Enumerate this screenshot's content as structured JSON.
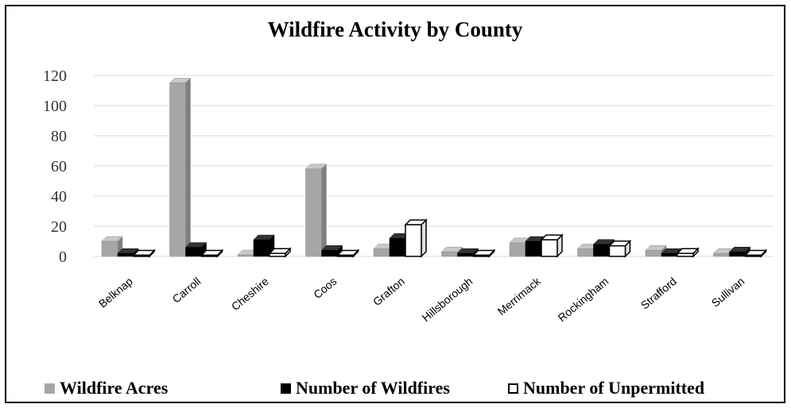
{
  "chart_data": {
    "type": "bar",
    "title": "Wildfire Activity by County",
    "categories": [
      "Belknap",
      "Carroll",
      "Cheshire",
      "Coos",
      "Grafton",
      "Hillsborough",
      "Merrimack",
      "Rockingham",
      "Strafford",
      "Sullivan"
    ],
    "series": [
      {
        "name": "Wildfire Acres",
        "values": [
          10,
          115,
          1,
          58,
          5,
          3,
          9,
          5,
          4,
          2
        ]
      },
      {
        "name": "Number of Wildfires",
        "values": [
          2,
          6,
          11,
          4,
          12,
          2,
          10,
          8,
          2,
          3
        ]
      },
      {
        "name": "Number of Unpermitted",
        "values": [
          0,
          0,
          2,
          0,
          21,
          0,
          11,
          7,
          2,
          0
        ]
      }
    ],
    "ylim": [
      0,
      120
    ],
    "yticks": [
      0,
      20,
      40,
      60,
      80,
      100,
      120
    ],
    "grid": true,
    "legend_position": "bottom",
    "colors": [
      "#a6a6a6",
      "#000000",
      "#ffffff"
    ]
  }
}
